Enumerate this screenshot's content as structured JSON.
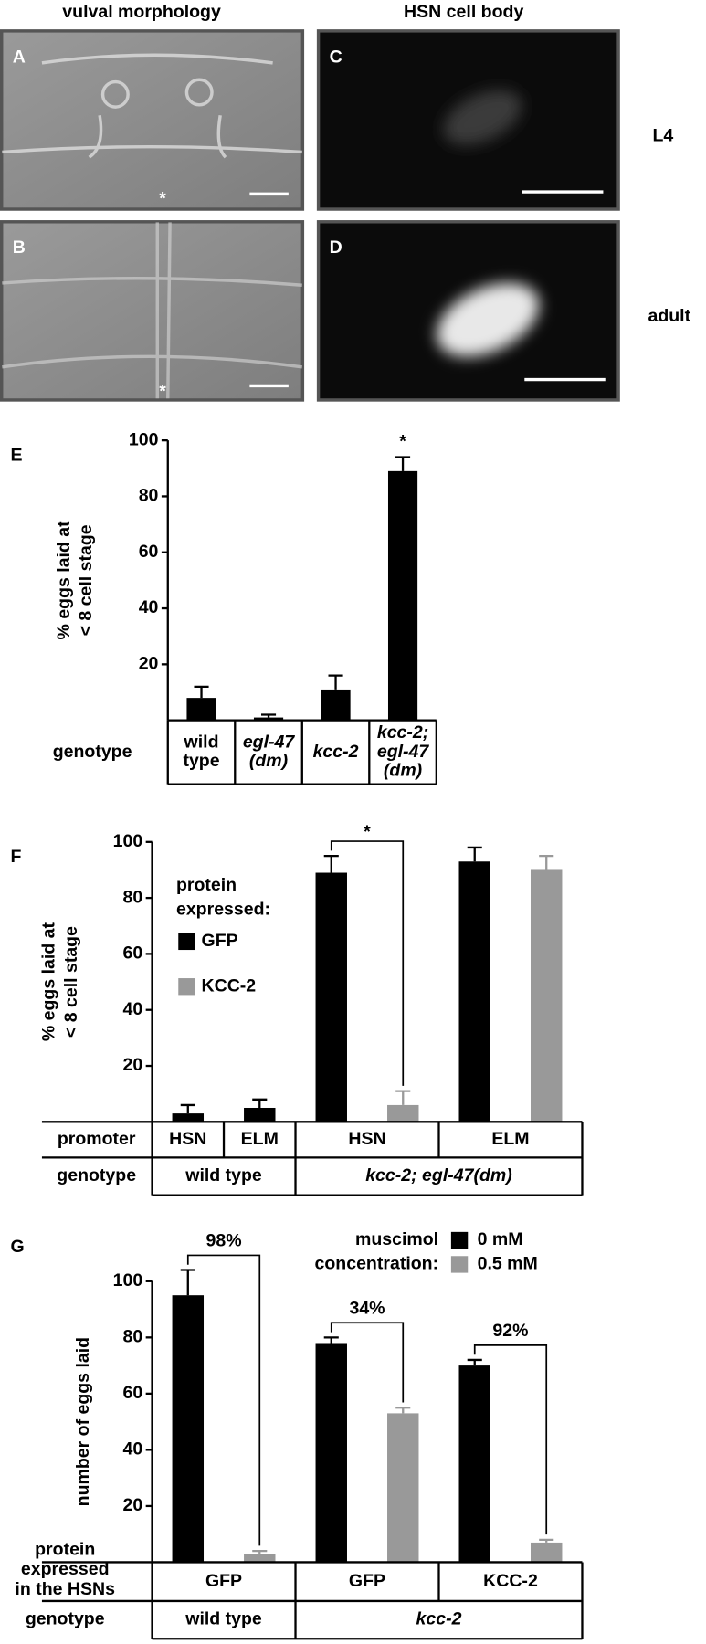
{
  "micrographs": {
    "columns": [
      "vulval morphology",
      "HSN cell body"
    ],
    "rows": [
      "L4",
      "adult"
    ],
    "panels": [
      "A",
      "C",
      "B",
      "D"
    ],
    "markers": [
      "*",
      "*"
    ]
  },
  "chart_data": [
    {
      "type": "bar",
      "panel": "E",
      "ylabel": [
        "% eggs laid at",
        "< 8 cell stage"
      ],
      "row_labels": [
        [
          "genotype"
        ]
      ],
      "categories": [
        [
          "wild",
          "type"
        ],
        [
          "egl-47",
          "(dm)"
        ],
        [
          "kcc-2"
        ],
        [
          "kcc-2;",
          "egl-47",
          "(dm)"
        ]
      ],
      "italic": [
        false,
        true,
        true,
        true
      ],
      "series": [
        {
          "color": "#000000",
          "values": [
            8,
            1,
            11,
            89
          ],
          "errors": [
            4,
            1,
            5,
            5
          ]
        }
      ],
      "ylim": [
        0,
        100
      ],
      "yticks": [
        20,
        40,
        60,
        80,
        100
      ],
      "annotations": [
        {
          "label": "*",
          "category": 3
        }
      ]
    },
    {
      "type": "bar",
      "panel": "F",
      "ylabel": [
        "% eggs laid at",
        "< 8 cell stage"
      ],
      "row_labels": [
        [
          "promoter"
        ],
        [
          "genotype"
        ]
      ],
      "categories": [
        [
          "HSN"
        ],
        [
          "ELM"
        ],
        [
          "HSN"
        ],
        [
          "ELM"
        ]
      ],
      "groups": [
        {
          "name": "wild type",
          "size": 2,
          "italic": false
        },
        {
          "name": "kcc-2; egl-47(dm)",
          "size": 2,
          "italic": true
        }
      ],
      "legend_title": [
        "protein",
        "expressed:"
      ],
      "series": [
        {
          "name": "GFP",
          "color": "#000000",
          "values": [
            3,
            5,
            89,
            93
          ],
          "errors": [
            3,
            3,
            6,
            5
          ]
        },
        {
          "name": "KCC-2",
          "color": "#999999",
          "values": [
            null,
            null,
            6,
            90
          ],
          "errors": [
            null,
            null,
            5,
            5
          ]
        }
      ],
      "ylim": [
        0,
        100
      ],
      "yticks": [
        20,
        40,
        60,
        80,
        100
      ],
      "annotations": [
        {
          "label": "*",
          "category": 2
        }
      ]
    },
    {
      "type": "bar",
      "panel": "G",
      "ylabel": [
        "number of eggs laid"
      ],
      "row_labels": [
        [
          "protein",
          "expressed",
          "in the HSNs"
        ],
        [
          "genotype"
        ]
      ],
      "categories": [
        [
          "GFP"
        ],
        [
          "GFP"
        ],
        [
          "KCC-2"
        ]
      ],
      "groups": [
        {
          "name": "wild type",
          "size": 1,
          "italic": false
        },
        {
          "name": "kcc-2",
          "size": 2,
          "italic": true
        }
      ],
      "legend_title": [
        "muscimol",
        "concentration:"
      ],
      "series": [
        {
          "name": "0 mM",
          "color": "#000000",
          "values": [
            95,
            78,
            70
          ],
          "errors": [
            9,
            2,
            2
          ]
        },
        {
          "name": "0.5 mM",
          "color": "#999999",
          "values": [
            3,
            53,
            7
          ],
          "errors": [
            1,
            2,
            1
          ]
        }
      ],
      "ylim": [
        0,
        100
      ],
      "yticks": [
        20,
        40,
        60,
        80,
        100
      ],
      "annotations": [
        {
          "label": "98%",
          "category": 0
        },
        {
          "label": "34%",
          "category": 1
        },
        {
          "label": "92%",
          "category": 2
        }
      ]
    }
  ]
}
